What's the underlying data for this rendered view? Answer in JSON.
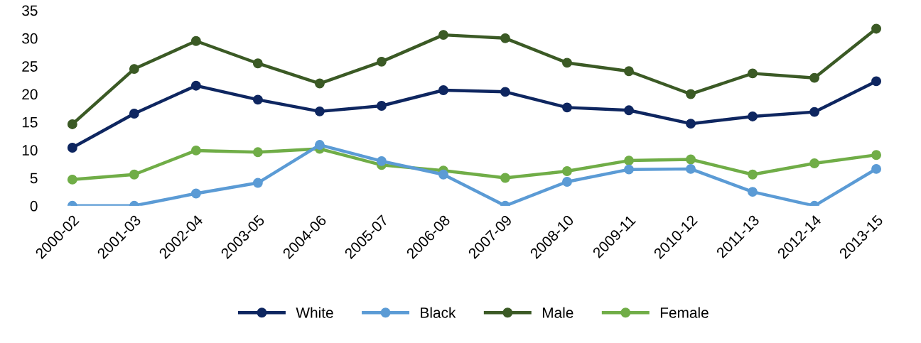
{
  "chart_data": {
    "type": "line",
    "categories": [
      "2000-02",
      "2001-03",
      "2002-04",
      "2003-05",
      "2004-06",
      "2005-07",
      "2006-08",
      "2007-09",
      "2008-10",
      "2009-11",
      "2010-12",
      "2011-13",
      "2012-14",
      "2013-15"
    ],
    "series": [
      {
        "name": "White",
        "color": "#0e2660",
        "values": [
          10.4,
          16.5,
          21.5,
          19.0,
          16.9,
          17.9,
          20.7,
          20.4,
          17.6,
          17.1,
          14.7,
          16.0,
          16.8,
          22.3
        ]
      },
      {
        "name": "Black",
        "color": "#5b9bd5",
        "values": [
          0,
          0,
          2.2,
          4.1,
          10.9,
          8.0,
          5.6,
          0,
          4.3,
          6.5,
          6.6,
          2.5,
          0,
          6.6
        ]
      },
      {
        "name": "Male",
        "color": "#3b5a25",
        "values": [
          14.6,
          24.5,
          29.5,
          25.5,
          21.9,
          25.8,
          30.6,
          30.0,
          25.6,
          24.1,
          20.0,
          23.7,
          22.9,
          31.7
        ]
      },
      {
        "name": "Female",
        "color": "#70ad47",
        "values": [
          4.7,
          5.6,
          9.9,
          9.6,
          10.2,
          7.3,
          6.3,
          5.0,
          6.2,
          8.1,
          8.3,
          5.6,
          7.6,
          9.1
        ]
      }
    ],
    "ylim": [
      0,
      35
    ],
    "yticks": [
      0,
      5,
      10,
      15,
      20,
      25,
      30,
      35
    ],
    "grid": false,
    "legend": "bottom",
    "marker": "circle",
    "line_style": "solid"
  }
}
